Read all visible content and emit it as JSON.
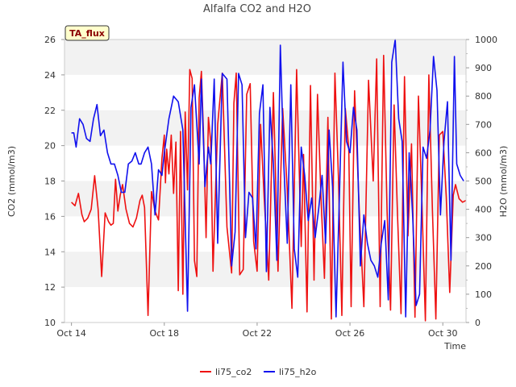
{
  "chart_data": {
    "type": "line",
    "title": "Alfalfa CO2 and H2O",
    "xlabel": "Time",
    "ylabel": "CO2 (mmol/m3)",
    "y2label": "H2O (mmol/m3)",
    "badge": "TA_flux",
    "xlim": [
      -0.3,
      17.0
    ],
    "ylim": [
      10,
      26
    ],
    "y2lim": [
      0,
      1000
    ],
    "x_ticks": [
      {
        "value": 0,
        "label": "Oct 14"
      },
      {
        "value": 4,
        "label": "Oct 18"
      },
      {
        "value": 8,
        "label": "Oct 22"
      },
      {
        "value": 12,
        "label": "Oct 26"
      },
      {
        "value": 16,
        "label": "Oct 30"
      }
    ],
    "y_ticks": [
      10,
      12,
      14,
      16,
      18,
      20,
      22,
      24,
      26
    ],
    "y2_ticks": [
      0,
      100,
      200,
      300,
      400,
      500,
      600,
      700,
      800,
      900,
      1000
    ],
    "grid_bands": true,
    "legend_position": "bottom-center",
    "series": [
      {
        "name": "li75_co2",
        "axis": "left",
        "color": "#ee1111",
        "x": [
          0.0,
          0.15,
          0.3,
          0.45,
          0.55,
          0.7,
          0.85,
          1.0,
          1.15,
          1.3,
          1.45,
          1.6,
          1.7,
          1.8,
          1.9,
          2.0,
          2.1,
          2.2,
          2.35,
          2.5,
          2.65,
          2.8,
          2.95,
          3.05,
          3.15,
          3.3,
          3.45,
          3.6,
          3.75,
          3.9,
          4.0,
          4.05,
          4.1,
          4.2,
          4.3,
          4.4,
          4.5,
          4.6,
          4.7,
          4.8,
          4.9,
          5.0,
          5.1,
          5.2,
          5.3,
          5.4,
          5.5,
          5.6,
          5.7,
          5.8,
          5.9,
          6.0,
          6.1,
          6.3,
          6.5,
          6.7,
          6.9,
          7.0,
          7.1,
          7.25,
          7.4,
          7.55,
          7.7,
          7.85,
          8.0,
          8.15,
          8.3,
          8.5,
          8.7,
          8.9,
          9.1,
          9.3,
          9.5,
          9.7,
          9.9,
          10.0,
          10.15,
          10.3,
          10.45,
          10.6,
          10.75,
          10.9,
          11.05,
          11.2,
          11.35,
          11.5,
          11.65,
          11.8,
          11.95,
          12.05,
          12.2,
          12.4,
          12.6,
          12.8,
          13.0,
          13.15,
          13.3,
          13.45,
          13.6,
          13.75,
          13.9,
          14.05,
          14.2,
          14.35,
          14.5,
          14.65,
          14.8,
          14.95,
          15.1,
          15.25,
          15.4,
          15.55,
          15.7,
          15.85,
          16.0,
          16.15,
          16.3,
          16.45,
          16.55,
          16.7,
          16.85,
          17.0
        ],
        "values": [
          16.8,
          16.6,
          17.3,
          16.1,
          15.7,
          15.9,
          16.4,
          18.3,
          16.4,
          12.6,
          16.2,
          15.7,
          15.5,
          15.6,
          18.1,
          16.3,
          17.2,
          17.8,
          16.4,
          15.6,
          15.4,
          15.9,
          16.9,
          17.2,
          16.5,
          10.4,
          17.4,
          16.3,
          15.8,
          19.3,
          20.6,
          17.9,
          19.8,
          18.4,
          20.6,
          17.3,
          20.2,
          11.8,
          20.8,
          11.6,
          21.9,
          17.5,
          24.3,
          23.8,
          13.5,
          12.6,
          22.7,
          24.2,
          20.2,
          14.8,
          21.6,
          20.2,
          12.9,
          21.2,
          24.1,
          15.4,
          12.8,
          22.4,
          24.1,
          12.7,
          13.0,
          22.9,
          23.5,
          14.6,
          12.9,
          21.2,
          17.1,
          12.4,
          23.0,
          12.9,
          22.1,
          17.5,
          10.8,
          24.3,
          14.3,
          19.5,
          10.6,
          23.4,
          12.4,
          22.9,
          17.1,
          12.5,
          21.6,
          10.2,
          24.1,
          18.3,
          10.4,
          22.1,
          19.8,
          10.9,
          23.1,
          16.4,
          10.9,
          23.7,
          18.0,
          24.9,
          10.9,
          25.1,
          16.3,
          10.7,
          22.3,
          16.0,
          10.5,
          23.9,
          14.9,
          20.1,
          10.3,
          22.8,
          16.8,
          10.1,
          24.0,
          16.4,
          10.2,
          20.6,
          20.8,
          17.1,
          11.7,
          17.2,
          17.8,
          17.0,
          16.8,
          16.9
        ]
      },
      {
        "name": "li75_h2o",
        "axis": "right",
        "color": "#1111ee",
        "x": [
          0.0,
          0.1,
          0.2,
          0.35,
          0.5,
          0.65,
          0.8,
          0.95,
          1.1,
          1.25,
          1.4,
          1.55,
          1.7,
          1.85,
          2.0,
          2.15,
          2.3,
          2.45,
          2.6,
          2.75,
          2.9,
          3.0,
          3.15,
          3.3,
          3.45,
          3.6,
          3.75,
          3.9,
          4.0,
          4.2,
          4.4,
          4.6,
          4.8,
          5.0,
          5.15,
          5.3,
          5.4,
          5.5,
          5.6,
          5.75,
          5.9,
          6.0,
          6.15,
          6.3,
          6.5,
          6.7,
          6.9,
          7.05,
          7.2,
          7.35,
          7.5,
          7.65,
          7.8,
          7.95,
          8.1,
          8.25,
          8.4,
          8.55,
          8.7,
          8.85,
          9.0,
          9.15,
          9.3,
          9.45,
          9.6,
          9.75,
          9.9,
          10.05,
          10.2,
          10.35,
          10.5,
          10.65,
          10.8,
          10.95,
          11.1,
          11.25,
          11.4,
          11.55,
          11.7,
          11.85,
          12.0,
          12.15,
          12.3,
          12.45,
          12.6,
          12.75,
          12.9,
          13.05,
          13.2,
          13.35,
          13.5,
          13.65,
          13.8,
          13.95,
          14.1,
          14.25,
          14.4,
          14.55,
          14.7,
          14.85,
          15.0,
          15.15,
          15.3,
          15.45,
          15.6,
          15.75,
          15.9,
          16.05,
          16.2,
          16.35,
          16.5,
          16.6,
          16.75,
          16.9
        ],
        "values": [
          670,
          670,
          620,
          720,
          700,
          650,
          640,
          720,
          770,
          660,
          680,
          600,
          560,
          560,
          520,
          460,
          460,
          560,
          570,
          600,
          560,
          560,
          600,
          620,
          560,
          380,
          540,
          520,
          600,
          720,
          800,
          780,
          680,
          40,
          760,
          840,
          700,
          560,
          860,
          480,
          620,
          560,
          860,
          280,
          880,
          860,
          200,
          320,
          880,
          840,
          300,
          460,
          440,
          260,
          740,
          840,
          180,
          760,
          560,
          220,
          980,
          560,
          280,
          840,
          260,
          160,
          620,
          520,
          360,
          440,
          300,
          400,
          520,
          280,
          680,
          480,
          20,
          460,
          920,
          640,
          600,
          760,
          680,
          200,
          380,
          280,
          220,
          200,
          160,
          280,
          360,
          80,
          920,
          1000,
          720,
          640,
          20,
          600,
          380,
          60,
          100,
          620,
          580,
          680,
          940,
          820,
          380,
          640,
          780,
          220,
          940,
          560,
          520,
          500
        ]
      }
    ]
  }
}
